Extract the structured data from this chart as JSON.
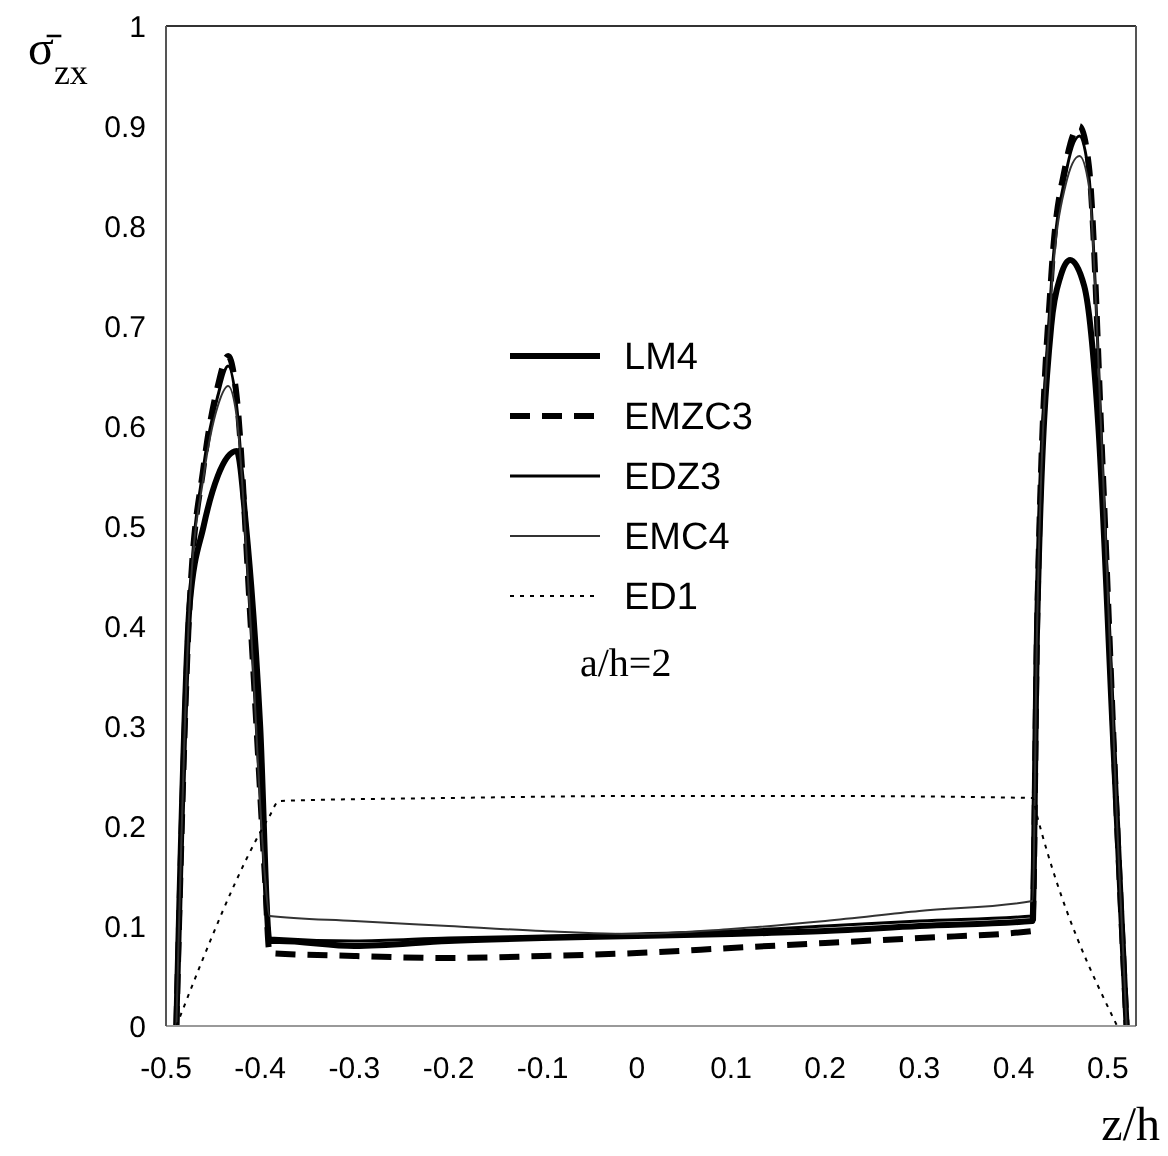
{
  "chart_data": {
    "type": "line",
    "ylabel": "σ̄$_{zx}$",
    "xlabel": "z/h",
    "annotations": [
      "a/h=2"
    ],
    "xlim": [
      -0.5,
      0.53
    ],
    "ylim": [
      0,
      1
    ],
    "xticks": [
      -0.5,
      -0.4,
      -0.3,
      -0.2,
      -0.1,
      0,
      0.1,
      0.2,
      0.3,
      0.4,
      0.5
    ],
    "yticks": [
      0,
      0.1,
      0.2,
      0.3,
      0.4,
      0.5,
      0.6,
      0.7,
      0.8,
      0.9,
      1
    ],
    "grid": false,
    "legend": "center",
    "marker": "none",
    "series": [
      {
        "name": "LM4",
        "color": "#000000",
        "line_style": "solid",
        "x": [
          -0.489,
          -0.475,
          -0.46,
          -0.445,
          -0.425,
          -0.415,
          -0.4,
          -0.39,
          -0.38,
          -0.3,
          -0.2,
          -0.1,
          0,
          0.1,
          0.2,
          0.3,
          0.42,
          0.425,
          0.44,
          0.45,
          0.46,
          0.475,
          0.49,
          0.505,
          0.52
        ],
        "values": [
          0,
          0.42,
          0.5,
          0.55,
          0.575,
          0.5,
          0.3,
          0.085,
          0.085,
          0.08,
          0.085,
          0.088,
          0.09,
          0.092,
          0.095,
          0.1,
          0.105,
          0.4,
          0.7,
          0.75,
          0.766,
          0.74,
          0.6,
          0.3,
          0
        ]
      },
      {
        "name": "EMZC3",
        "color": "#000000",
        "line_style": "dashed",
        "x": [
          -0.489,
          -0.475,
          -0.46,
          -0.445,
          -0.434,
          -0.425,
          -0.41,
          -0.395,
          -0.39,
          -0.3,
          -0.2,
          -0.1,
          0,
          0.1,
          0.2,
          0.3,
          0.42,
          0.425,
          0.44,
          0.455,
          0.47,
          0.48,
          0.495,
          0.51,
          0.52
        ],
        "values": [
          0,
          0.42,
          0.56,
          0.64,
          0.67,
          0.63,
          0.4,
          0.15,
          0.073,
          0.07,
          0.068,
          0.07,
          0.073,
          0.078,
          0.083,
          0.088,
          0.095,
          0.4,
          0.75,
          0.86,
          0.9,
          0.86,
          0.55,
          0.2,
          0
        ]
      },
      {
        "name": "EDZ3",
        "color": "#000000",
        "line_style": "solid",
        "x": [
          -0.489,
          -0.475,
          -0.46,
          -0.445,
          -0.434,
          -0.425,
          -0.41,
          -0.395,
          -0.39,
          -0.3,
          -0.2,
          -0.1,
          0,
          0.1,
          0.2,
          0.3,
          0.42,
          0.425,
          0.44,
          0.455,
          0.47,
          0.48,
          0.495,
          0.51,
          0.52
        ],
        "values": [
          0,
          0.42,
          0.56,
          0.63,
          0.66,
          0.62,
          0.4,
          0.15,
          0.088,
          0.085,
          0.088,
          0.09,
          0.092,
          0.095,
          0.1,
          0.105,
          0.11,
          0.4,
          0.74,
          0.85,
          0.89,
          0.85,
          0.55,
          0.2,
          0
        ]
      },
      {
        "name": "EMC4",
        "color": "#333333",
        "line_style": "solid",
        "x": [
          -0.489,
          -0.475,
          -0.46,
          -0.445,
          -0.434,
          -0.425,
          -0.41,
          -0.395,
          -0.39,
          -0.3,
          -0.2,
          -0.1,
          0,
          0.1,
          0.2,
          0.3,
          0.42,
          0.425,
          0.44,
          0.455,
          0.47,
          0.48,
          0.495,
          0.51,
          0.52
        ],
        "values": [
          0,
          0.42,
          0.55,
          0.62,
          0.64,
          0.61,
          0.4,
          0.15,
          0.11,
          0.105,
          0.1,
          0.095,
          0.092,
          0.097,
          0.105,
          0.115,
          0.125,
          0.4,
          0.73,
          0.84,
          0.87,
          0.84,
          0.55,
          0.2,
          0
        ]
      },
      {
        "name": "ED1",
        "color": "#000000",
        "line_style": "dotted",
        "x": [
          -0.489,
          -0.39,
          -0.38,
          -0.2,
          0,
          0.2,
          0.42,
          0.425,
          0.51
        ],
        "values": [
          0,
          0.21,
          0.225,
          0.228,
          0.23,
          0.23,
          0.228,
          0.21,
          0
        ]
      }
    ]
  }
}
